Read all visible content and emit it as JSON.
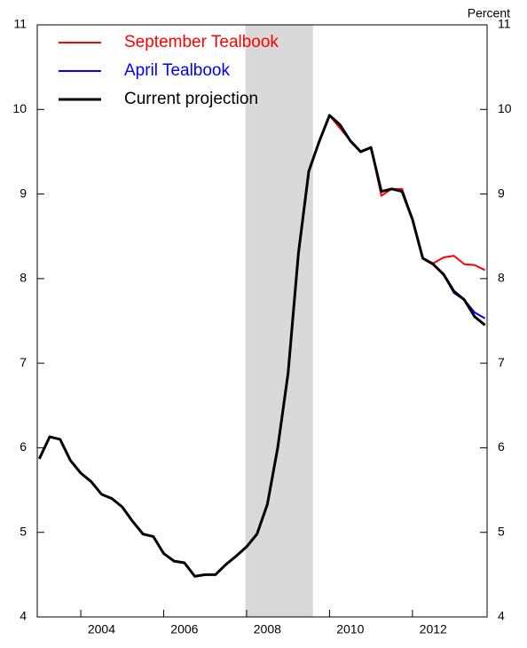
{
  "chart_data": {
    "type": "line",
    "y_unit_label": "Percent",
    "x": [
      2003.0,
      2003.25,
      2003.5,
      2003.75,
      2004.0,
      2004.25,
      2004.5,
      2004.75,
      2005.0,
      2005.25,
      2005.5,
      2005.75,
      2006.0,
      2006.25,
      2006.5,
      2006.75,
      2007.0,
      2007.25,
      2007.5,
      2007.75,
      2008.0,
      2008.25,
      2008.5,
      2008.75,
      2009.0,
      2009.25,
      2009.5,
      2009.75,
      2010.0,
      2010.25,
      2010.5,
      2010.75,
      2011.0,
      2011.25,
      2011.5,
      2011.75,
      2012.0,
      2012.25,
      2012.5,
      2012.75,
      2013.0,
      2013.25,
      2013.5,
      2013.75
    ],
    "series": [
      {
        "name": "September Tealbook",
        "color": "#ff0000",
        "width": 2,
        "values": [
          5.87,
          6.13,
          6.1,
          5.85,
          5.7,
          5.6,
          5.45,
          5.4,
          5.3,
          5.13,
          4.98,
          4.95,
          4.75,
          4.66,
          4.64,
          4.48,
          4.5,
          4.5,
          4.62,
          4.72,
          4.83,
          4.98,
          5.33,
          6.0,
          6.88,
          8.3,
          9.27,
          9.62,
          9.93,
          9.78,
          9.63,
          9.5,
          9.55,
          8.98,
          9.06,
          9.06,
          8.7,
          8.24,
          8.18,
          8.25,
          8.27,
          8.17,
          8.16,
          8.1
        ]
      },
      {
        "name": "April Tealbook",
        "color": "#0000ff",
        "width": 2,
        "values": [
          5.87,
          6.13,
          6.1,
          5.85,
          5.7,
          5.6,
          5.45,
          5.4,
          5.3,
          5.13,
          4.98,
          4.95,
          4.75,
          4.66,
          4.64,
          4.48,
          4.5,
          4.5,
          4.62,
          4.72,
          4.83,
          4.98,
          5.33,
          6.0,
          6.88,
          8.3,
          9.27,
          9.62,
          9.93,
          9.82,
          9.63,
          9.5,
          9.55,
          9.03,
          9.06,
          9.03,
          8.7,
          8.24,
          8.17,
          8.05,
          7.83,
          7.75,
          7.6,
          7.53
        ]
      },
      {
        "name": "Current projection",
        "color": "#000000",
        "width": 3,
        "values": [
          5.87,
          6.13,
          6.1,
          5.85,
          5.7,
          5.6,
          5.45,
          5.4,
          5.3,
          5.13,
          4.98,
          4.95,
          4.75,
          4.66,
          4.64,
          4.48,
          4.5,
          4.5,
          4.62,
          4.72,
          4.83,
          4.98,
          5.33,
          6.0,
          6.88,
          8.3,
          9.27,
          9.62,
          9.93,
          9.82,
          9.63,
          9.5,
          9.55,
          9.03,
          9.06,
          9.03,
          8.7,
          8.24,
          8.17,
          8.05,
          7.85,
          7.75,
          7.55,
          7.45
        ]
      }
    ],
    "shading": [
      2007.97,
      2009.6
    ],
    "shading_color": "#d9d9d9",
    "xlim": [
      2002.95,
      2013.8
    ],
    "xticks": [
      2004,
      2006,
      2008,
      2010,
      2012
    ],
    "ylim": [
      4,
      11
    ],
    "yticks": [
      4,
      5,
      6,
      7,
      8,
      9,
      10,
      11
    ],
    "y2lim": [
      4,
      11
    ],
    "y2ticks": [
      4,
      5,
      6,
      7,
      8,
      9,
      10,
      11
    ],
    "legend": "upper left"
  }
}
